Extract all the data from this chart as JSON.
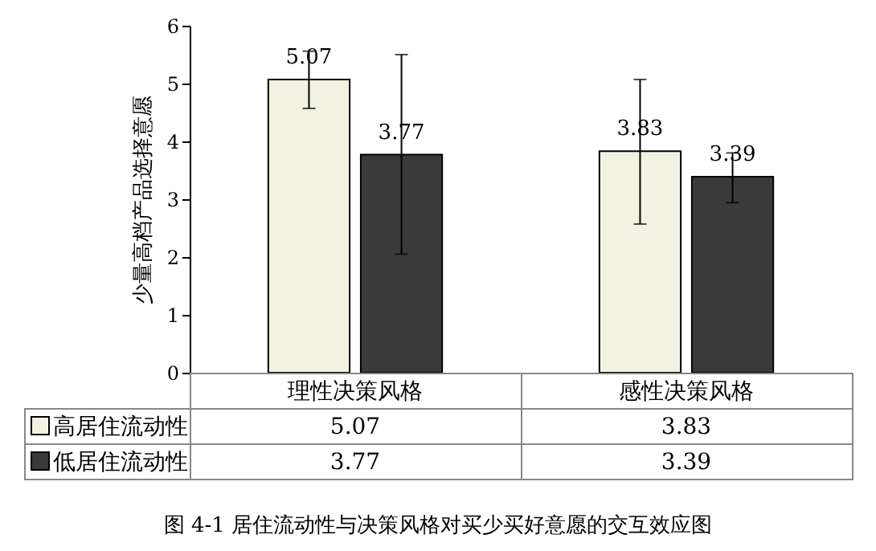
{
  "chart_data": {
    "type": "bar",
    "title": "图 4-1   居住流动性与决策风格对买少买好意愿的交互效应图",
    "ylabel": "少量高档产品选择意愿",
    "categories": [
      "理性决策风格",
      "感性决策风格"
    ],
    "series": [
      {
        "name": "高居住流动性",
        "color": "#f2f2e2",
        "values": [
          5.07,
          3.83
        ],
        "value_labels": [
          "5.07",
          "3.83"
        ],
        "errors": [
          [
            4.57,
            5.56
          ],
          [
            2.57,
            5.07
          ]
        ]
      },
      {
        "name": "低居住流动性",
        "color": "#3a3a3a",
        "values": [
          3.77,
          3.39
        ],
        "value_labels": [
          "3.77",
          "3.39"
        ],
        "errors": [
          [
            2.05,
            5.5
          ],
          [
            2.94,
            3.8
          ]
        ]
      }
    ],
    "ylim": [
      0,
      6
    ],
    "yticks": [
      0,
      1,
      2,
      3,
      4,
      5,
      6
    ],
    "grid": false,
    "legend": "bottom"
  }
}
